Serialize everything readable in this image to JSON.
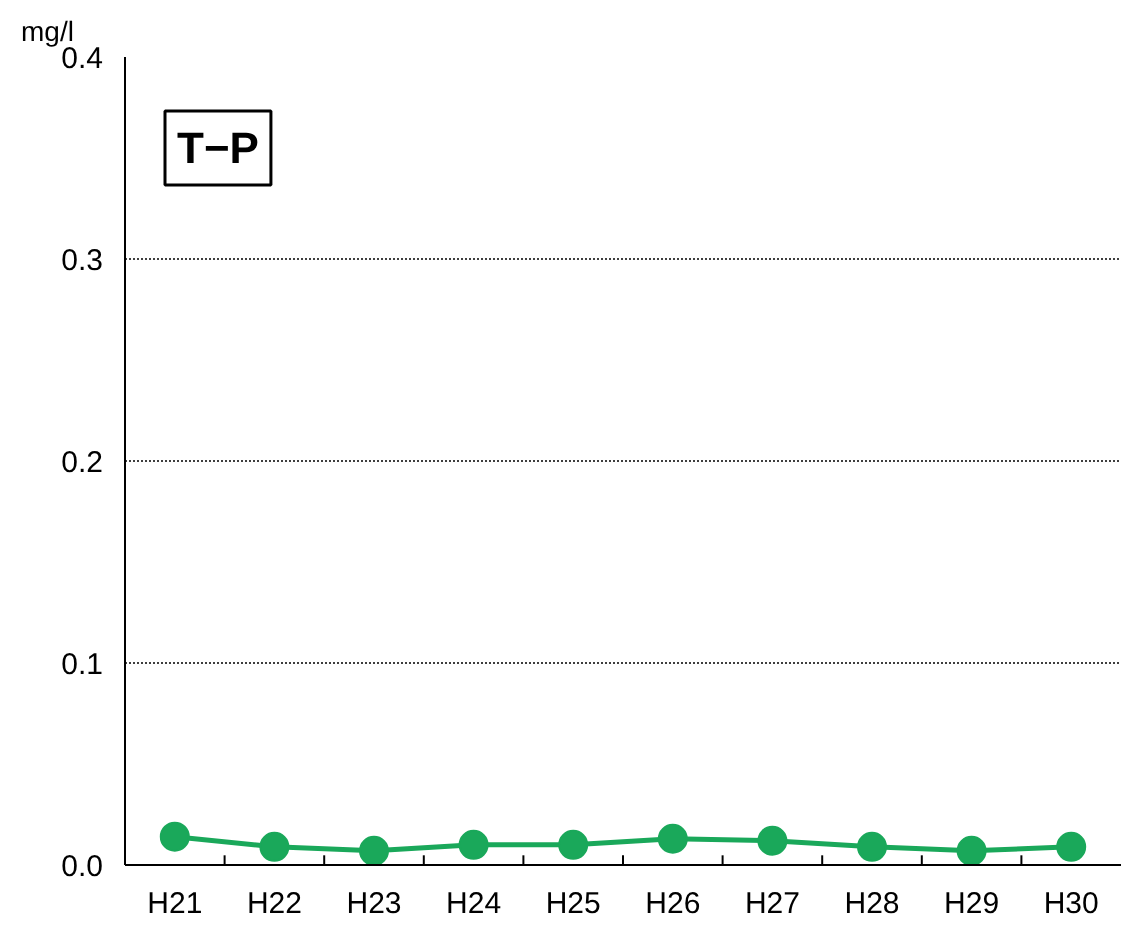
{
  "chart_data": {
    "type": "line",
    "title": "T−P",
    "ylabel": "mg/l",
    "categories": [
      "H21",
      "H22",
      "H23",
      "H24",
      "H25",
      "H26",
      "H27",
      "H28",
      "H29",
      "H30"
    ],
    "series": [
      {
        "color": "#1aa85a",
        "values": [
          0.014,
          0.009,
          0.007,
          0.01,
          0.01,
          0.013,
          0.012,
          0.009,
          0.007,
          0.009
        ]
      }
    ],
    "ylim": [
      0,
      0.4
    ],
    "yticks": [
      {
        "value": 0,
        "label": "0.0"
      },
      0.1,
      0.2,
      0.3,
      0.4
    ],
    "grid": "y",
    "marker": "circle",
    "line_style": "solid"
  }
}
